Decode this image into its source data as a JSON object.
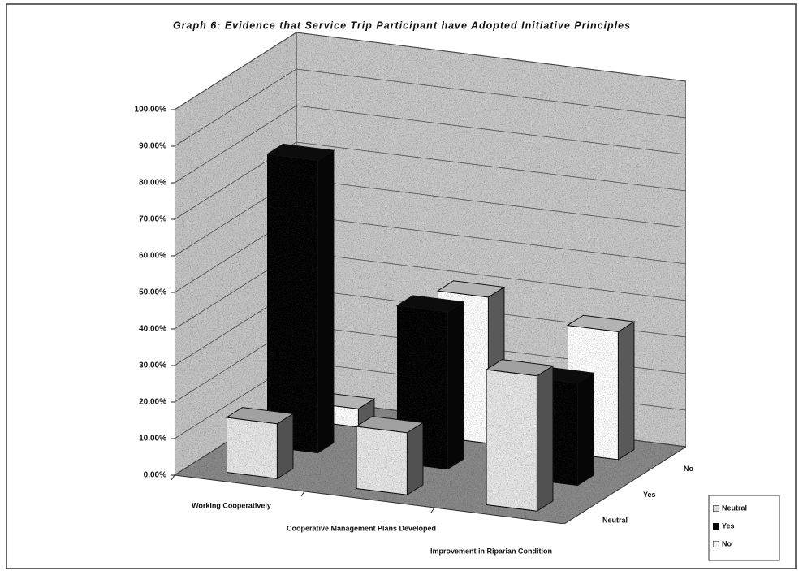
{
  "chart_data": {
    "type": "bar3d",
    "title": "Graph 6: Evidence that Service Trip Participant have Adopted Initiative Principles",
    "categories": [
      "Working Cooperatively",
      "Cooperative Management Plans Developed",
      "Improvement in Riparian Condition"
    ],
    "series": [
      {
        "name": "Neutral",
        "color": "#e6e6e6",
        "values": [
          15,
          17,
          37
        ]
      },
      {
        "name": "Yes",
        "color": "#111111",
        "values": [
          80,
          43,
          28
        ]
      },
      {
        "name": "No",
        "color": "#ffffff",
        "values": [
          5,
          40,
          35
        ]
      }
    ],
    "ylim": [
      0,
      100
    ],
    "yticks": [
      {
        "value": 0,
        "label": "0.00%"
      },
      {
        "value": 10,
        "label": "10.00%"
      },
      {
        "value": 20,
        "label": "20.00%"
      },
      {
        "value": 30,
        "label": "30.00%"
      },
      {
        "value": 40,
        "label": "40.00%"
      },
      {
        "value": 50,
        "label": "50.00%"
      },
      {
        "value": 60,
        "label": "60.00%"
      },
      {
        "value": 70,
        "label": "70.00%"
      },
      {
        "value": 80,
        "label": "80.00%"
      },
      {
        "value": 90,
        "label": "90.00%"
      },
      {
        "value": 100,
        "label": "100.00%"
      }
    ],
    "grid": true,
    "legend": "bottom-right"
  }
}
